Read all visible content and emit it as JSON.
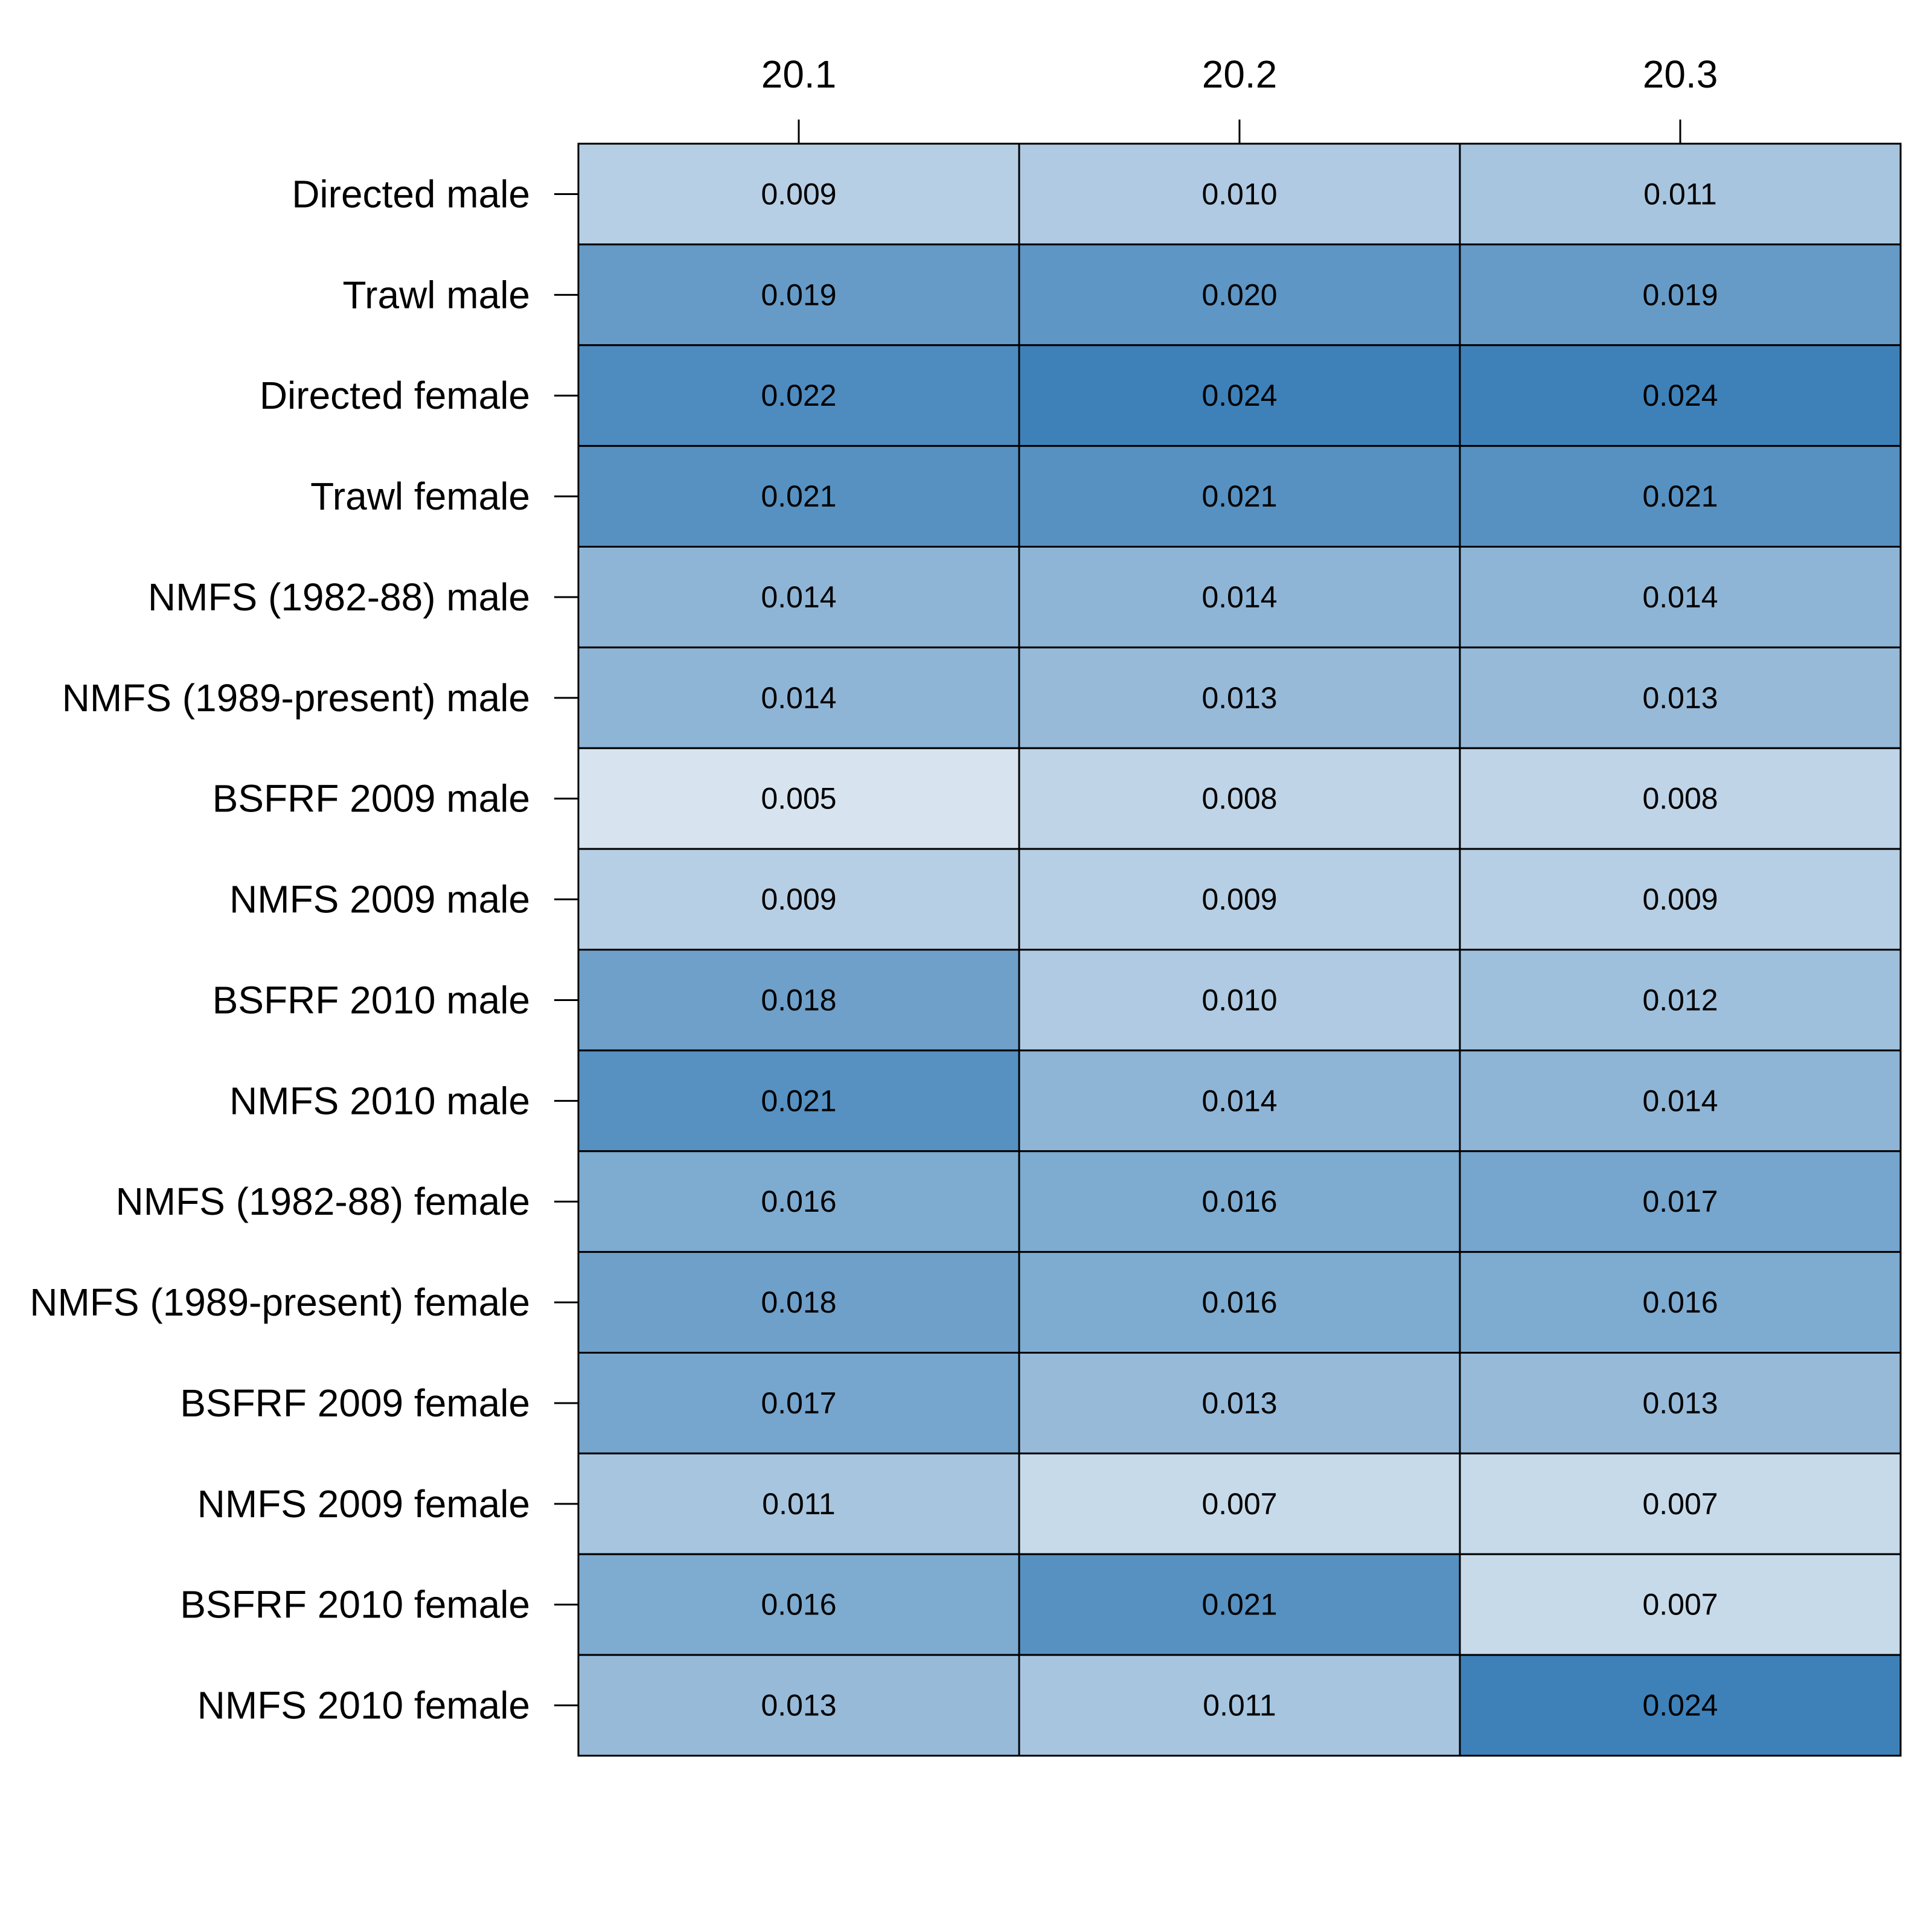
{
  "chart_data": {
    "type": "heatmap",
    "columns": [
      "20.1",
      "20.2",
      "20.3"
    ],
    "rows": [
      "Directed male",
      "Trawl male",
      "Directed female",
      "Trawl female",
      "NMFS (1982-88) male",
      "NMFS (1989-present) male",
      "BSFRF 2009 male",
      "NMFS 2009 male",
      "BSFRF 2010 male",
      "NMFS 2010 male",
      "NMFS (1982-88) female",
      "NMFS (1989-present) female",
      "BSFRF 2009 female",
      "NMFS 2009 female",
      "BSFRF 2010 female",
      "NMFS 2010 female"
    ],
    "values": [
      [
        "0.009",
        "0.010",
        "0.011"
      ],
      [
        "0.019",
        "0.020",
        "0.019"
      ],
      [
        "0.022",
        "0.024",
        "0.024"
      ],
      [
        "0.021",
        "0.021",
        "0.021"
      ],
      [
        "0.014",
        "0.014",
        "0.014"
      ],
      [
        "0.014",
        "0.013",
        "0.013"
      ],
      [
        "0.005",
        "0.008",
        "0.008"
      ],
      [
        "0.009",
        "0.009",
        "0.009"
      ],
      [
        "0.018",
        "0.010",
        "0.012"
      ],
      [
        "0.021",
        "0.014",
        "0.014"
      ],
      [
        "0.016",
        "0.016",
        "0.017"
      ],
      [
        "0.018",
        "0.016",
        "0.016"
      ],
      [
        "0.017",
        "0.013",
        "0.013"
      ],
      [
        "0.011",
        "0.007",
        "0.007"
      ],
      [
        "0.016",
        "0.021",
        "0.007"
      ],
      [
        "0.013",
        "0.011",
        "0.024"
      ]
    ],
    "color_scale": {
      "low_value": 0.005,
      "high_value": 0.024,
      "low_color": "#d7e4f0",
      "high_color": "#3e81b9"
    },
    "column_axis": "top",
    "row_axis": "left",
    "legend": "none"
  }
}
